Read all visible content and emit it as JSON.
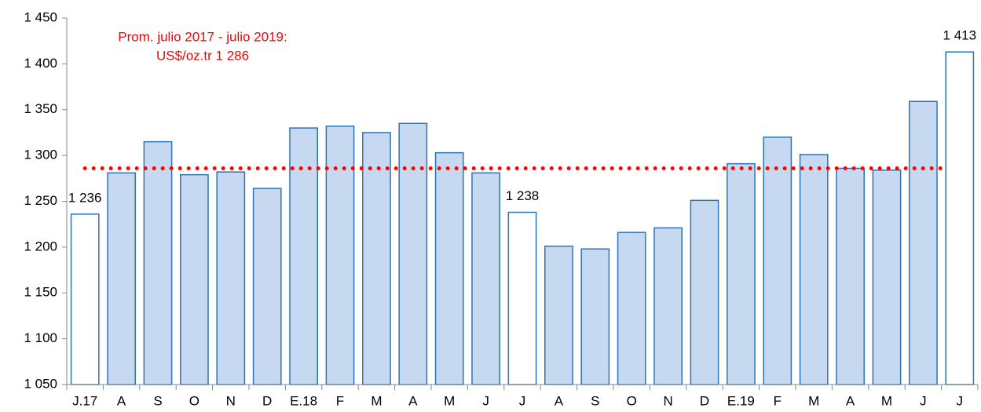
{
  "chart_data": {
    "type": "bar",
    "categories": [
      "J.17",
      "A",
      "S",
      "O",
      "N",
      "D",
      "E.18",
      "F",
      "M",
      "A",
      "M",
      "J",
      "J",
      "A",
      "S",
      "O",
      "N",
      "D",
      "E.19",
      "F",
      "M",
      "A",
      "M",
      "J",
      "J"
    ],
    "values": [
      1236,
      1281,
      1315,
      1279,
      1282,
      1264,
      1330,
      1332,
      1325,
      1335,
      1303,
      1281,
      1238,
      1201,
      1198,
      1216,
      1221,
      1251,
      1291,
      1320,
      1301,
      1286,
      1284,
      1359,
      1413
    ],
    "value_labels": [
      "1 236",
      null,
      null,
      null,
      null,
      null,
      null,
      null,
      null,
      null,
      null,
      null,
      "1 238",
      null,
      null,
      null,
      null,
      null,
      null,
      null,
      null,
      null,
      null,
      null,
      "1 413"
    ],
    "colors": [
      "#ffffff",
      "#c6d9f0",
      "#c6d9f0",
      "#c6d9f0",
      "#c6d9f0",
      "#c6d9f0",
      "#c6d9f0",
      "#c6d9f0",
      "#c6d9f0",
      "#c6d9f0",
      "#c6d9f0",
      "#c6d9f0",
      "#ffffff",
      "#c6d9f0",
      "#c6d9f0",
      "#c6d9f0",
      "#c6d9f0",
      "#c6d9f0",
      "#c6d9f0",
      "#c6d9f0",
      "#c6d9f0",
      "#c6d9f0",
      "#c6d9f0",
      "#c6d9f0",
      "#ffffff"
    ],
    "border_color": "#2e74b5",
    "ylim": [
      1050,
      1450
    ],
    "yticks": [
      {
        "value": 1050,
        "label": "1 050"
      },
      {
        "value": 1100,
        "label": "1 100"
      },
      {
        "value": 1150,
        "label": "1 150"
      },
      {
        "value": 1200,
        "label": "1 200"
      },
      {
        "value": 1250,
        "label": "1 250"
      },
      {
        "value": 1300,
        "label": "1 300"
      },
      {
        "value": 1350,
        "label": "1 350"
      },
      {
        "value": 1400,
        "label": "1 400"
      },
      {
        "value": 1450,
        "label": "1 450"
      }
    ],
    "reference_line": {
      "value": 1286,
      "color": "#ff0000"
    },
    "annotation": [
      "Prom. julio 2017 - julio 2019:",
      "US$/oz.tr 1 286"
    ]
  }
}
